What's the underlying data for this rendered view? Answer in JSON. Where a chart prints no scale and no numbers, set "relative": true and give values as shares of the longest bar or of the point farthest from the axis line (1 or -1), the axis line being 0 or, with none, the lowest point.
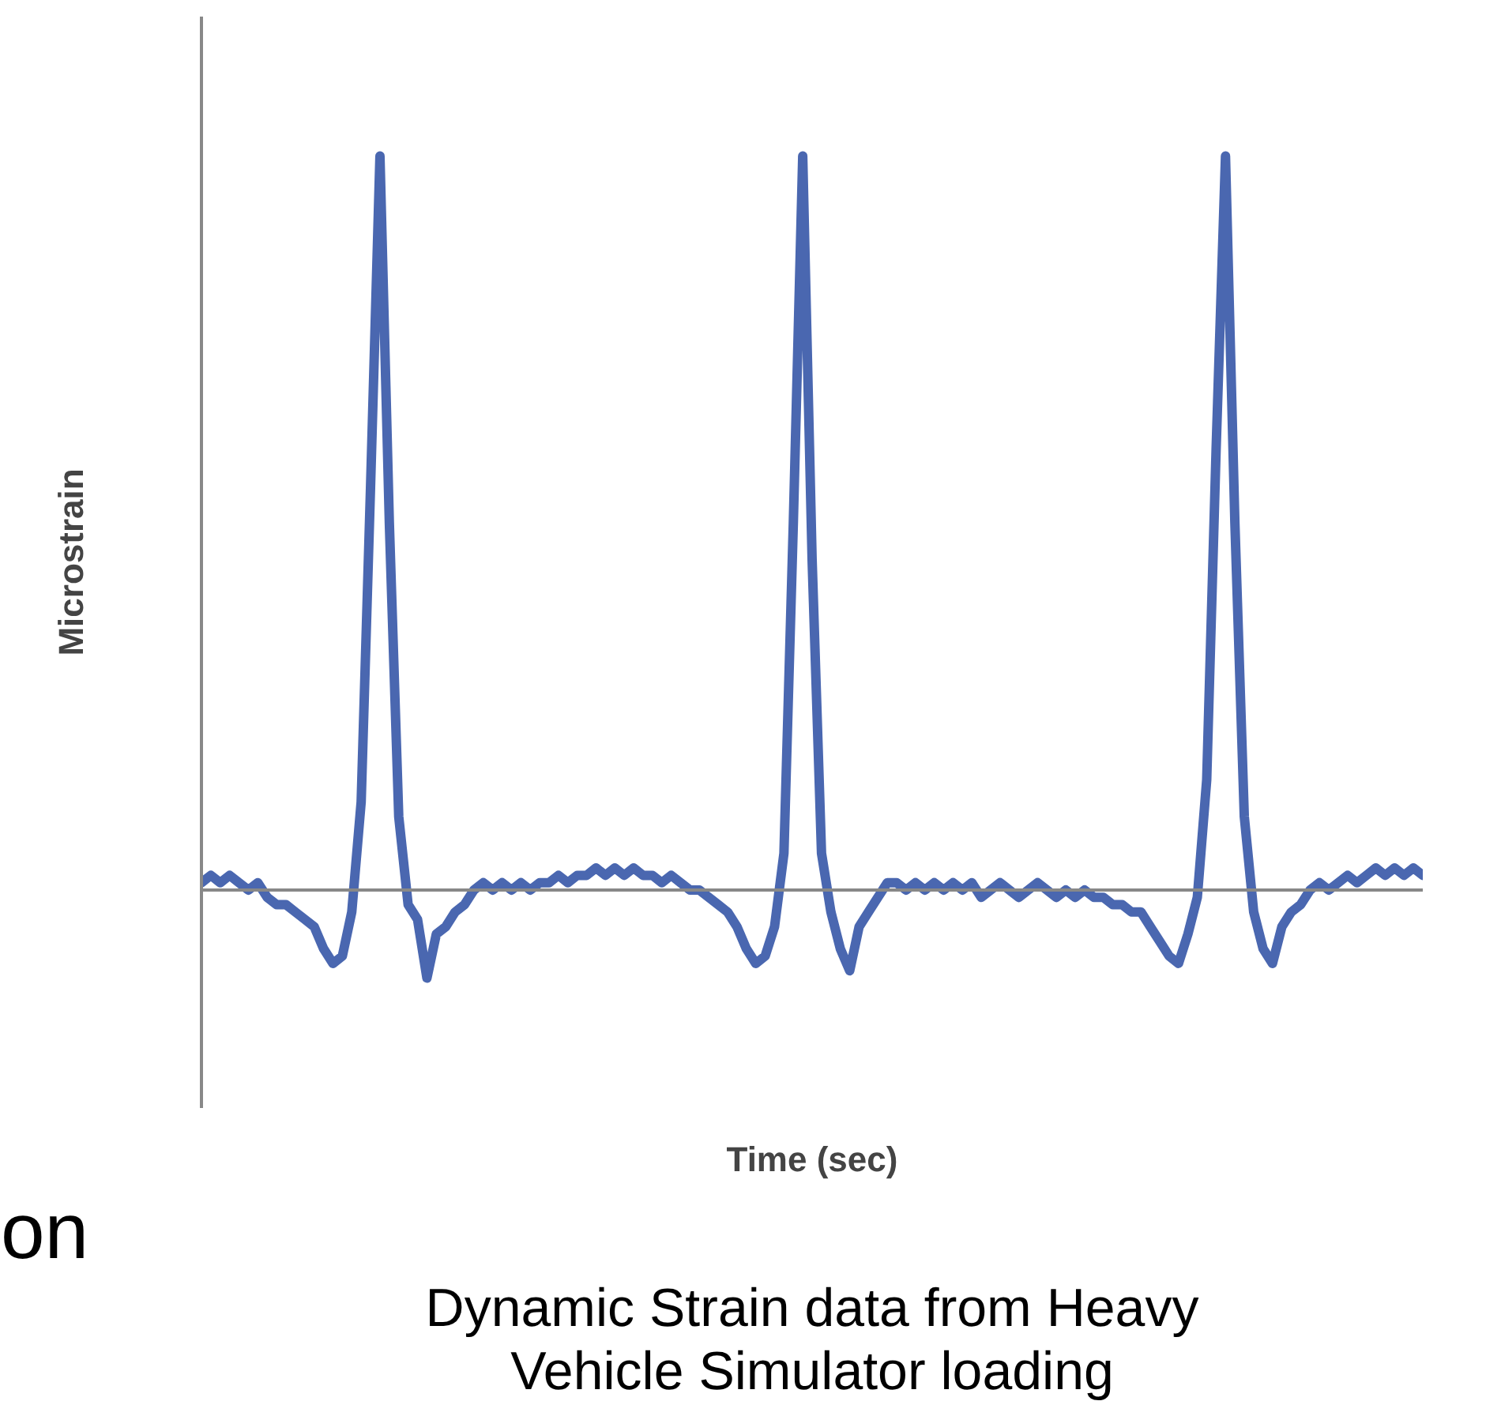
{
  "chart_data": {
    "type": "line",
    "relative": true,
    "xlabel": "Time (sec)",
    "ylabel": "Microstrain",
    "categories": [
      null,
      null,
      null,
      null,
      null,
      null,
      null,
      null,
      null,
      null,
      null,
      null,
      null,
      null,
      null,
      null,
      null,
      null,
      null,
      null,
      null,
      null,
      null,
      null,
      null,
      null,
      null,
      null,
      null,
      null,
      null,
      null,
      null,
      null,
      null,
      null,
      null,
      null,
      null,
      null,
      null,
      null,
      null,
      null,
      null,
      null,
      null,
      null,
      null,
      null,
      null,
      null,
      null,
      null,
      null,
      null,
      null,
      null,
      null,
      null,
      null,
      null,
      null,
      null,
      null,
      null,
      null,
      null,
      null,
      null,
      null,
      null,
      null,
      null,
      null,
      null,
      null,
      null,
      null,
      null,
      null,
      null,
      null,
      null,
      null,
      null,
      null,
      null,
      null,
      null,
      null,
      null,
      null,
      null,
      null,
      null,
      null,
      null,
      null,
      null,
      null,
      null,
      null,
      null,
      null,
      null,
      null,
      null,
      null,
      null,
      null,
      null,
      null,
      null,
      null,
      null,
      null,
      null,
      null,
      null,
      null,
      null,
      null,
      null,
      null,
      null,
      null,
      null,
      null,
      null,
      null
    ],
    "series": [
      {
        "color": "#4a67b0",
        "values": [
          0.01,
          0.02,
          0.01,
          0.02,
          0.01,
          0.0,
          0.01,
          -0.01,
          -0.02,
          -0.02,
          -0.03,
          -0.04,
          -0.05,
          -0.08,
          -0.1,
          -0.09,
          -0.03,
          0.12,
          0.55,
          1.0,
          0.5,
          0.1,
          -0.02,
          -0.04,
          -0.12,
          -0.06,
          -0.05,
          -0.03,
          -0.02,
          0.0,
          0.01,
          0.0,
          0.01,
          0.0,
          0.01,
          0.0,
          0.01,
          0.01,
          0.02,
          0.01,
          0.02,
          0.02,
          0.03,
          0.02,
          0.03,
          0.02,
          0.03,
          0.02,
          0.02,
          0.01,
          0.02,
          0.01,
          0.0,
          0.0,
          -0.01,
          -0.02,
          -0.03,
          -0.05,
          -0.08,
          -0.1,
          -0.09,
          -0.05,
          0.05,
          0.5,
          1.0,
          0.45,
          0.05,
          -0.03,
          -0.08,
          -0.11,
          -0.05,
          -0.03,
          -0.01,
          0.01,
          0.01,
          0.0,
          0.01,
          0.0,
          0.01,
          0.0,
          0.01,
          0.0,
          0.01,
          -0.01,
          0.0,
          0.01,
          0.0,
          -0.01,
          0.0,
          0.01,
          0.0,
          -0.01,
          0.0,
          -0.01,
          0.0,
          -0.01,
          -0.01,
          -0.02,
          -0.02,
          -0.03,
          -0.03,
          -0.05,
          -0.07,
          -0.09,
          -0.1,
          -0.06,
          -0.01,
          0.15,
          0.6,
          1.0,
          0.5,
          0.1,
          -0.03,
          -0.08,
          -0.1,
          -0.05,
          -0.03,
          -0.02,
          0.0,
          0.01,
          0.0,
          0.01,
          0.02,
          0.01,
          0.02,
          0.03,
          0.02,
          0.03,
          0.02,
          0.03,
          0.02
        ]
      }
    ],
    "annotations": [
      "on",
      "Dynamic Strain data from Heavy Vehicle Simulator loading"
    ]
  }
}
